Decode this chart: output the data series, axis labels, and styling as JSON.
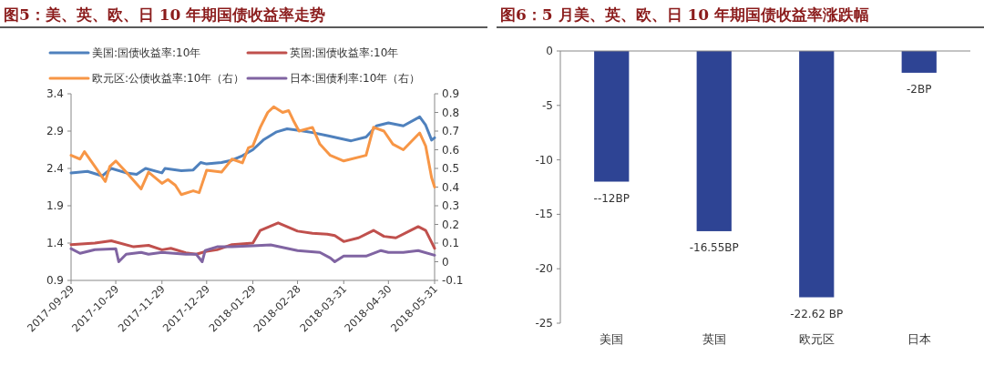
{
  "chart_data": [
    {
      "type": "line",
      "title": "图5：美、英、欧、日 10 年期国债收益率走势",
      "legend": "top",
      "xlim": [
        "2017-09-29",
        "2018-05-31"
      ],
      "xticks": [
        "2017-09-29",
        "2017-10-29",
        "2017-11-29",
        "2017-12-29",
        "2018-01-29",
        "2018-02-28",
        "2018-03-31",
        "2018-04-30",
        "2018-05-31"
      ],
      "ylim": [
        0.9,
        3.4
      ],
      "yticks": [
        0.9,
        1.4,
        1.9,
        2.4,
        2.9,
        3.4
      ],
      "y2lim": [
        -0.1,
        0.9
      ],
      "y2ticks": [
        -0.1,
        0,
        0.1,
        0.2,
        0.3,
        0.4,
        0.5,
        0.6,
        0.7,
        0.8,
        0.9
      ],
      "series": [
        {
          "name": "美国:国债收益率:10年",
          "color": "#4f81bd",
          "x": [
            "2017-09-29",
            "2017-10-10",
            "2017-10-20",
            "2017-10-26",
            "2017-11-05",
            "2017-11-12",
            "2017-11-18",
            "2017-11-29",
            "2017-12-01",
            "2017-12-12",
            "2017-12-20",
            "2017-12-25",
            "2017-12-29",
            "2018-01-08",
            "2018-01-15",
            "2018-01-22",
            "2018-01-29",
            "2018-02-05",
            "2018-02-14",
            "2018-02-21",
            "2018-03-01",
            "2018-03-10",
            "2018-03-20",
            "2018-04-05",
            "2018-04-15",
            "2018-04-22",
            "2018-04-30",
            "2018-05-10",
            "2018-05-21",
            "2018-05-25",
            "2018-05-29",
            "2018-05-31"
          ],
          "values": [
            2.34,
            2.36,
            2.3,
            2.4,
            2.34,
            2.32,
            2.4,
            2.34,
            2.4,
            2.37,
            2.38,
            2.48,
            2.46,
            2.48,
            2.51,
            2.57,
            2.65,
            2.78,
            2.89,
            2.93,
            2.91,
            2.88,
            2.84,
            2.77,
            2.82,
            2.97,
            3.01,
            2.97,
            3.09,
            2.98,
            2.78,
            2.81
          ]
        },
        {
          "name": "英国:国债收益率:10年",
          "color": "#c0504d",
          "x": [
            "2017-09-29",
            "2017-10-15",
            "2017-10-26",
            "2017-11-10",
            "2017-11-20",
            "2017-11-29",
            "2017-12-05",
            "2017-12-15",
            "2017-12-22",
            "2017-12-29",
            "2018-01-05",
            "2018-01-15",
            "2018-01-29",
            "2018-02-03",
            "2018-02-15",
            "2018-02-28",
            "2018-03-10",
            "2018-03-20",
            "2018-03-25",
            "2018-03-31",
            "2018-04-10",
            "2018-04-20",
            "2018-04-27",
            "2018-05-05",
            "2018-05-20",
            "2018-05-25",
            "2018-05-28",
            "2018-05-31"
          ],
          "values": [
            1.38,
            1.4,
            1.43,
            1.35,
            1.37,
            1.31,
            1.33,
            1.27,
            1.25,
            1.29,
            1.31,
            1.38,
            1.4,
            1.57,
            1.67,
            1.56,
            1.53,
            1.52,
            1.5,
            1.42,
            1.47,
            1.57,
            1.49,
            1.47,
            1.62,
            1.57,
            1.45,
            1.33
          ]
        },
        {
          "name": "欧元区:公债收益率:10年（右）",
          "color": "#f79646",
          "axis": "y2",
          "x": [
            "2017-09-29",
            "2017-10-05",
            "2017-10-08",
            "2017-10-15",
            "2017-10-22",
            "2017-10-25",
            "2017-10-29",
            "2017-11-05",
            "2017-11-15",
            "2017-11-20",
            "2017-11-29",
            "2017-12-03",
            "2017-12-08",
            "2017-12-12",
            "2017-12-20",
            "2017-12-24",
            "2017-12-29",
            "2018-01-08",
            "2018-01-15",
            "2018-01-22",
            "2018-01-26",
            "2018-01-29",
            "2018-02-03",
            "2018-02-08",
            "2018-02-12",
            "2018-02-18",
            "2018-02-22",
            "2018-02-25",
            "2018-03-01",
            "2018-03-10",
            "2018-03-15",
            "2018-03-22",
            "2018-03-31",
            "2018-04-15",
            "2018-04-20",
            "2018-04-27",
            "2018-05-03",
            "2018-05-10",
            "2018-05-21",
            "2018-05-25",
            "2018-05-29",
            "2018-05-31"
          ],
          "values": [
            0.57,
            0.55,
            0.59,
            0.51,
            0.43,
            0.51,
            0.54,
            0.48,
            0.39,
            0.48,
            0.42,
            0.44,
            0.41,
            0.36,
            0.38,
            0.37,
            0.49,
            0.48,
            0.55,
            0.53,
            0.61,
            0.62,
            0.72,
            0.8,
            0.83,
            0.8,
            0.81,
            0.76,
            0.7,
            0.72,
            0.63,
            0.57,
            0.54,
            0.57,
            0.72,
            0.7,
            0.63,
            0.6,
            0.69,
            0.62,
            0.45,
            0.4
          ]
        },
        {
          "name": "日本:国债利率:10年（右）",
          "color": "#8064a2",
          "axis": "y2",
          "x": [
            "2017-09-29",
            "2017-10-05",
            "2017-10-15",
            "2017-10-29",
            "2017-10-31",
            "2017-11-05",
            "2017-11-15",
            "2017-11-20",
            "2017-11-29",
            "2017-12-15",
            "2017-12-22",
            "2017-12-26",
            "2017-12-28",
            "2018-01-05",
            "2018-01-15",
            "2018-01-29",
            "2018-02-10",
            "2018-02-28",
            "2018-03-15",
            "2018-03-22",
            "2018-03-25",
            "2018-03-31",
            "2018-04-15",
            "2018-04-25",
            "2018-04-30",
            "2018-05-10",
            "2018-05-20",
            "2018-05-31"
          ],
          "values": [
            0.07,
            0.045,
            0.065,
            0.07,
            0.0,
            0.04,
            0.05,
            0.04,
            0.05,
            0.04,
            0.04,
            0.0,
            0.06,
            0.08,
            0.08,
            0.085,
            0.09,
            0.06,
            0.05,
            0.02,
            0.0,
            0.03,
            0.03,
            0.06,
            0.05,
            0.05,
            0.06,
            0.035
          ]
        }
      ]
    },
    {
      "type": "bar",
      "title": "图6：5 月美、英、欧、日 10 年期国债收益率涨跌幅",
      "categories": [
        "美国",
        "英国",
        "欧元区",
        "日本"
      ],
      "values": [
        -12,
        -16.55,
        -22.62,
        -2
      ],
      "color": "#2e4494",
      "value_labels": [
        "--12BP",
        "-16.55BP",
        "-22.62 BP",
        "-2BP"
      ],
      "ylim": [
        -25,
        0
      ],
      "yticks": [
        -25,
        -20,
        -15,
        -10,
        -5,
        0
      ]
    }
  ]
}
